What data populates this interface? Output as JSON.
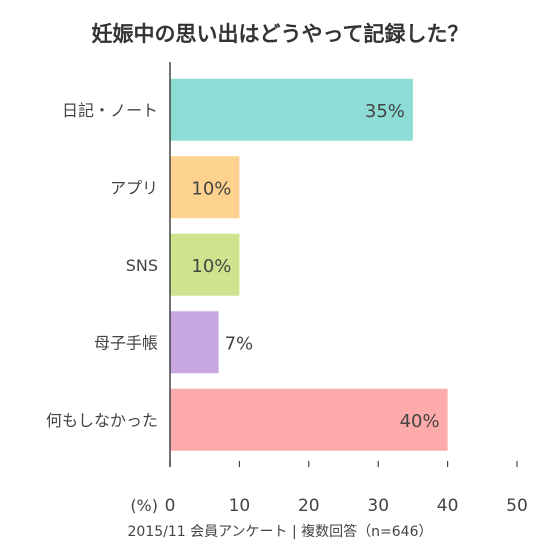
{
  "chart_data": {
    "type": "bar",
    "orientation": "horizontal",
    "title": "妊娠中の思い出はどうやって記録した？",
    "categories": [
      "日記・ノート",
      "アプリ",
      "SNS",
      "母子手帳",
      "何もしなかった"
    ],
    "values": [
      35,
      10,
      10,
      7,
      40
    ],
    "value_labels": [
      "35%",
      "10%",
      "10%",
      "7%",
      "40%"
    ],
    "colors": [
      "#8ddcd6",
      "#fdd28e",
      "#cfe28d",
      "#c7a7df",
      "#fdaaaa"
    ],
    "xlabel": "(%)",
    "xlim": [
      0,
      50
    ],
    "xticks": [
      0,
      10,
      20,
      30,
      40,
      50
    ],
    "xtick_labels": [
      "0",
      "10",
      "20",
      "30",
      "40",
      "50"
    ],
    "grid": false,
    "note": "2015/11 会員アンケート | 複数回答（n=646）"
  }
}
